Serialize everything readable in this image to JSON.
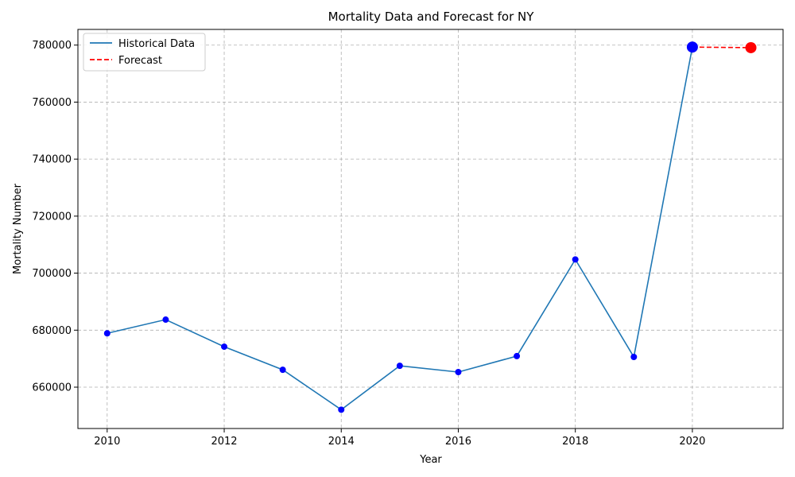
{
  "chart_data": {
    "type": "line",
    "title": "Mortality Data and Forecast for NY",
    "xlabel": "Year",
    "ylabel": "Mortality Number",
    "xlim": [
      2009.5,
      2021.55
    ],
    "ylim": [
      645500,
      785500
    ],
    "x_ticks": [
      2010,
      2012,
      2014,
      2016,
      2018,
      2020
    ],
    "y_ticks": [
      660000,
      680000,
      700000,
      720000,
      740000,
      760000,
      780000
    ],
    "grid": true,
    "legend_position": "top-left",
    "series": [
      {
        "name": "Historical Data",
        "style": "solid",
        "color": "#1f77b4",
        "marker_color": "#0000ff",
        "x": [
          2010,
          2011,
          2012,
          2013,
          2014,
          2015,
          2016,
          2017,
          2018,
          2019,
          2020
        ],
        "y": [
          678900,
          683700,
          674200,
          666100,
          652100,
          667500,
          665300,
          670900,
          704800,
          670600,
          779300
        ]
      },
      {
        "name": "Forecast",
        "style": "dashed",
        "color": "#ff0000",
        "marker_color": "#ff0000",
        "x": [
          2020,
          2021
        ],
        "y": [
          779300,
          779100
        ]
      }
    ],
    "highlight_points": [
      {
        "x": 2020,
        "y": 779300,
        "color": "#0000ff"
      },
      {
        "x": 2021,
        "y": 779100,
        "color": "#ff0000"
      }
    ]
  }
}
